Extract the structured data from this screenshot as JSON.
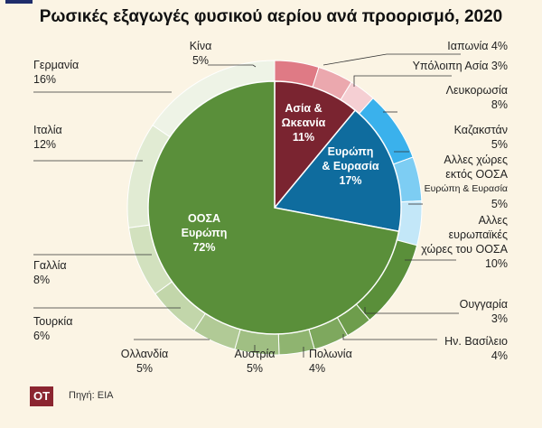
{
  "title": "Ρωσικές εξαγωγές φυσικού αερίου ανά προορισμό, 2020",
  "source": "Πηγή: EIA",
  "logo": "ΟΤ",
  "chart_data": {
    "type": "pie",
    "title": "Ρωσικές εξαγωγές φυσικού αερίου ανά προορισμό, 2020",
    "unit": "%",
    "inner": [
      {
        "label": [
          "Ασία &",
          "Ωκεανία"
        ],
        "value": 11,
        "display": "11%",
        "color": "#7a2430"
      },
      {
        "label": [
          "Ευρώπη",
          "& Ευρασία"
        ],
        "value": 17,
        "display": "17%",
        "color": "#0f6c9e"
      },
      {
        "label": [
          "ΟΟΣΑ",
          "Ευρώπη"
        ],
        "value": 72,
        "display": "72%",
        "color": "#5a8f3a"
      }
    ],
    "outer": [
      {
        "label": [
          "Κίνα"
        ],
        "value": 5,
        "display": "5%",
        "color": "#df7a85"
      },
      {
        "label": [
          "Ιαπωνία 4%"
        ],
        "value": 4,
        "display": "",
        "color": "#eba8ae"
      },
      {
        "label": [
          "Υπόλοιπη Ασία 3%"
        ],
        "value": 3,
        "display": "",
        "color": "#f5cfd3"
      },
      {
        "label": [
          "Λευκορωσία"
        ],
        "value": 8,
        "display": "8%",
        "color": "#3ab1ec"
      },
      {
        "label": [
          "Καζακστάν"
        ],
        "value": 5,
        "display": "5%",
        "color": "#7dcdf3"
      },
      {
        "label": [
          "Αλλες χώρες",
          "εκτός ΟΟΣΑ",
          "Ευρώπη & Ευρασία"
        ],
        "value": 5,
        "display": "5%",
        "color": "#c3e7f8"
      },
      {
        "label": [
          "Αλλες",
          "ευρωπαϊκές",
          "χώρες του ΟΟΣΑ"
        ],
        "value": 10,
        "display": "10%",
        "color": "#5a8f3a"
      },
      {
        "label": [
          "Ουγγαρία"
        ],
        "value": 3,
        "display": "3%",
        "color": "#6e9d4c"
      },
      {
        "label": [
          "Ην. Βασίλειο"
        ],
        "value": 4,
        "display": "4%",
        "color": "#7ea85e"
      },
      {
        "label": [
          "Πολωνία"
        ],
        "value": 4,
        "display": "4%",
        "color": "#8fb470"
      },
      {
        "label": [
          "Αυστρία"
        ],
        "value": 5,
        "display": "5%",
        "color": "#a0bf83"
      },
      {
        "label": [
          "Ολλανδία"
        ],
        "value": 5,
        "display": "5%",
        "color": "#b1ca96"
      },
      {
        "label": [
          "Τουρκία"
        ],
        "value": 6,
        "display": "6%",
        "color": "#c2d6aa"
      },
      {
        "label": [
          "Γαλλία"
        ],
        "value": 8,
        "display": "8%",
        "color": "#d2e1be"
      },
      {
        "label": [
          "Ιταλία"
        ],
        "value": 12,
        "display": "12%",
        "color": "#e1ebd3"
      },
      {
        "label": [
          "Γερμανία"
        ],
        "value": 16,
        "display": "16%",
        "color": "#eef3e6"
      }
    ]
  }
}
